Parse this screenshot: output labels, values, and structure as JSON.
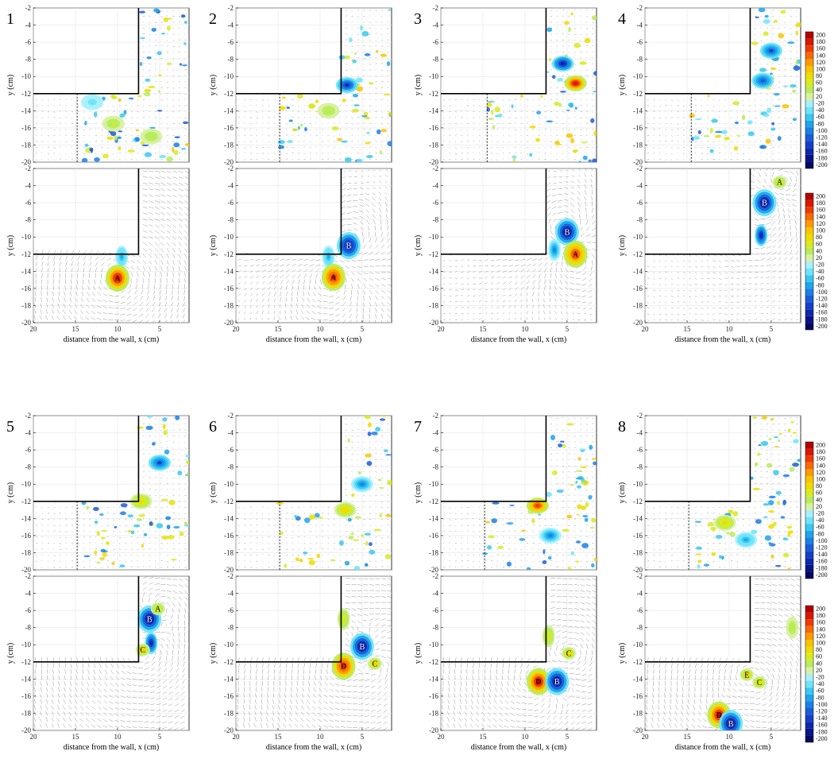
{
  "figure": {
    "x_label": "distance from the wall, x (cm)",
    "y_label": "y (cm)"
  },
  "chart_data": {
    "type": "heatmap",
    "description_of_panels": "8 panel groups, each with an upper (dye/PIV experimental) and lower (simulation) vorticity map with velocity vectors around a step corner",
    "x_ticks": [
      20,
      15,
      10,
      5
    ],
    "x_range": [
      20,
      1.5
    ],
    "y_ticks": [
      -2,
      -4,
      -6,
      -8,
      -10,
      -12,
      -14,
      -16,
      -18,
      -20
    ],
    "y_range": [
      -20,
      -2
    ],
    "wall": {
      "corner_x": 7.5,
      "corner_y": -12
    },
    "colorbar": {
      "ticks": [
        200,
        180,
        160,
        140,
        120,
        100,
        80,
        60,
        40,
        20,
        -20,
        -40,
        -60,
        -80,
        -100,
        -120,
        -140,
        -160,
        -180,
        -200
      ],
      "colors": [
        "#b40000",
        "#d81800",
        "#ee3a00",
        "#f86a00",
        "#fe9a00",
        "#f8c400",
        "#eedc00",
        "#d8ea20",
        "#b8ec5a",
        "#d8f0a0",
        "#a8f0ff",
        "#6ee4f8",
        "#38c8f2",
        "#1ea4ec",
        "#1a80e4",
        "#1a5cda",
        "#1440c8",
        "#0e28ac",
        "#081488",
        "#040860"
      ]
    },
    "panels": [
      {
        "number": "1",
        "top": {
          "dashed_x": 14.8,
          "blobs": [
            {
              "x": 10.5,
              "y": -15.5,
              "v": 50
            },
            {
              "x": 13,
              "y": -13,
              "v": -30
            },
            {
              "x": 6,
              "y": -17,
              "v": 40
            }
          ]
        },
        "bottom": {
          "vortices": [
            {
              "label": "A",
              "x": 10,
              "y": -14.8,
              "v": 180
            }
          ],
          "sheets": [
            {
              "x": 9.5,
              "y": -12.3,
              "v": -60
            }
          ]
        }
      },
      {
        "number": "2",
        "top": {
          "dashed_x": 14.8,
          "blobs": [
            {
              "x": 6.8,
              "y": -11,
              "v": -140
            },
            {
              "x": 9,
              "y": -14,
              "v": 40
            }
          ]
        },
        "bottom": {
          "vortices": [
            {
              "label": "A",
              "x": 8.4,
              "y": -14.7,
              "v": 170
            },
            {
              "label": "B",
              "x": 6.6,
              "y": -11,
              "v": -170
            }
          ],
          "sheets": [
            {
              "x": 9,
              "y": -12.3,
              "v": -60
            }
          ]
        }
      },
      {
        "number": "3",
        "top": {
          "dashed_x": 14.5,
          "blobs": [
            {
              "x": 5.5,
              "y": -8.5,
              "v": -150
            },
            {
              "x": 4,
              "y": -10.8,
              "v": 180
            }
          ]
        },
        "bottom": {
          "vortices": [
            {
              "label": "B",
              "x": 5,
              "y": -9.4,
              "v": -190
            },
            {
              "label": "A",
              "x": 4,
              "y": -12,
              "v": 160
            }
          ],
          "sheets": [
            {
              "x": 6.5,
              "y": -11.5,
              "v": -80
            }
          ]
        }
      },
      {
        "number": "4",
        "top": {
          "dashed_x": 14.5,
          "blobs": [
            {
              "x": 5,
              "y": -7,
              "v": -120
            },
            {
              "x": 6,
              "y": -10.5,
              "v": -100
            }
          ]
        },
        "bottom": {
          "vortices": [
            {
              "label": "B",
              "x": 5.8,
              "y": -6,
              "v": -190
            },
            {
              "label": "A",
              "x": 4,
              "y": -3.6,
              "v": 60
            }
          ],
          "sheets": [
            {
              "x": 6.2,
              "y": -9.8,
              "v": -150
            }
          ]
        }
      },
      {
        "number": "5",
        "top": {
          "dashed_x": 14.8,
          "blobs": [
            {
              "x": 5,
              "y": -7.5,
              "v": -120
            },
            {
              "x": 7.2,
              "y": -12,
              "v": 70
            }
          ]
        },
        "bottom": {
          "vortices": [
            {
              "label": "B",
              "x": 6.2,
              "y": -7,
              "v": -190
            },
            {
              "label": "A",
              "x": 5.2,
              "y": -5.8,
              "v": 60
            },
            {
              "label": "C",
              "x": 7.0,
              "y": -10.6,
              "v": 90
            }
          ],
          "sheets": [
            {
              "x": 6,
              "y": -9.8,
              "v": -150
            }
          ]
        }
      },
      {
        "number": "6",
        "top": {
          "dashed_x": 14.8,
          "blobs": [
            {
              "x": 5,
              "y": -10,
              "v": -80
            },
            {
              "x": 7,
              "y": -13,
              "v": 80
            }
          ]
        },
        "bottom": {
          "vortices": [
            {
              "label": "B",
              "x": 5,
              "y": -10.2,
              "v": -190
            },
            {
              "label": "C",
              "x": 3.5,
              "y": -12.2,
              "v": 90
            },
            {
              "label": "D",
              "x": 7.2,
              "y": -12.5,
              "v": 170
            }
          ],
          "sheets": [
            {
              "x": 7.2,
              "y": -7,
              "v": 60
            }
          ]
        }
      },
      {
        "number": "7",
        "top": {
          "dashed_x": 14.8,
          "blobs": [
            {
              "x": 8.5,
              "y": -12.5,
              "v": 160
            },
            {
              "x": 7,
              "y": -16,
              "v": -80
            }
          ]
        },
        "bottom": {
          "vortices": [
            {
              "label": "D",
              "x": 8.4,
              "y": -14.3,
              "v": 190
            },
            {
              "label": "B",
              "x": 6.2,
              "y": -14.3,
              "v": -180
            },
            {
              "label": "C",
              "x": 4.8,
              "y": -11,
              "v": 80
            }
          ],
          "sheets": [
            {
              "x": 7.2,
              "y": -9,
              "v": 60
            }
          ]
        }
      },
      {
        "number": "8",
        "top": {
          "dashed_x": 14.8,
          "blobs": [
            {
              "x": 10.5,
              "y": -14.5,
              "v": 70
            },
            {
              "x": 8,
              "y": -16.5,
              "v": -60
            }
          ]
        },
        "bottom": {
          "vortices": [
            {
              "label": "D",
              "x": 11.2,
              "y": -18.2,
              "v": 190
            },
            {
              "label": "B",
              "x": 9.8,
              "y": -19.2,
              "v": -180
            },
            {
              "label": "E",
              "x": 7.9,
              "y": -13.5,
              "v": 90
            },
            {
              "label": "C",
              "x": 6.4,
              "y": -14.4,
              "v": 70
            }
          ],
          "sheets": [
            {
              "x": 2.5,
              "y": -8,
              "v": 40
            }
          ]
        }
      }
    ]
  }
}
